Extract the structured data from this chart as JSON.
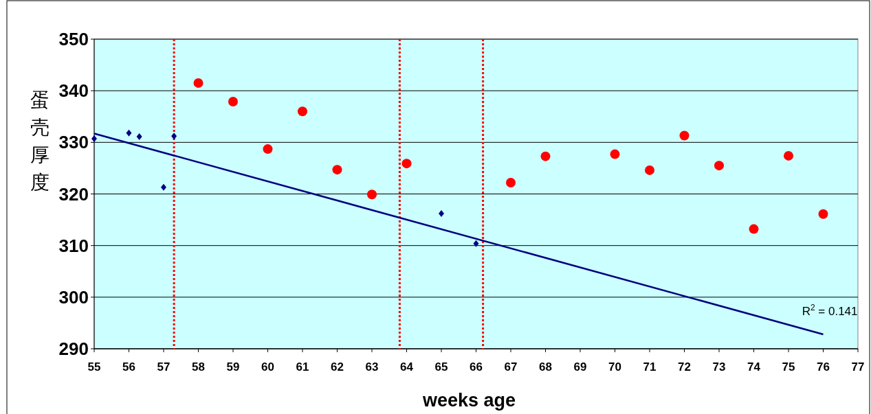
{
  "chart_data": {
    "type": "scatter",
    "ylabel": "蛋壳厚度",
    "xlabel": "weeks age",
    "xlim": [
      55,
      77
    ],
    "xticks": [
      55,
      56,
      57,
      58,
      59,
      60,
      61,
      62,
      63,
      64,
      65,
      66,
      67,
      68,
      69,
      70,
      71,
      72,
      73,
      74,
      75,
      76,
      77
    ],
    "ylim": [
      290,
      350
    ],
    "yticks": [
      290,
      300,
      310,
      320,
      330,
      340,
      350
    ],
    "grid": "y",
    "series": [
      {
        "marker": "diamond",
        "color": "#000080",
        "x": [
          55,
          56,
          56.3,
          57,
          57.3,
          65,
          66
        ],
        "values": [
          330.7,
          331.8,
          331.1,
          321.3,
          331.2,
          316.2,
          310.4
        ]
      },
      {
        "marker": "circle",
        "color": "#ff0000",
        "x": [
          58,
          59,
          60,
          61,
          62,
          63,
          64,
          67,
          68,
          70,
          71,
          72,
          73,
          74,
          75,
          76
        ],
        "values": [
          341.5,
          337.9,
          328.7,
          336.0,
          324.7,
          319.9,
          325.9,
          322.2,
          327.3,
          327.7,
          324.6,
          331.3,
          325.5,
          313.2,
          327.4,
          316.1
        ]
      },
      {
        "type": "line",
        "marker": "none",
        "line_style": "solid",
        "color": "#000080",
        "x": [
          55,
          76
        ],
        "values": [
          331.7,
          292.8
        ]
      }
    ],
    "ref_lines": [
      {
        "axis": "x",
        "value": 57.3,
        "color": "#ff0000",
        "line_style": "dotted"
      },
      {
        "axis": "x",
        "value": 63.8,
        "color": "#ff0000",
        "line_style": "dotted"
      },
      {
        "axis": "x",
        "value": 66.2,
        "color": "#ff0000",
        "line_style": "dotted"
      }
    ],
    "annotations": [
      "R$^{2}$ = 0.141"
    ]
  }
}
